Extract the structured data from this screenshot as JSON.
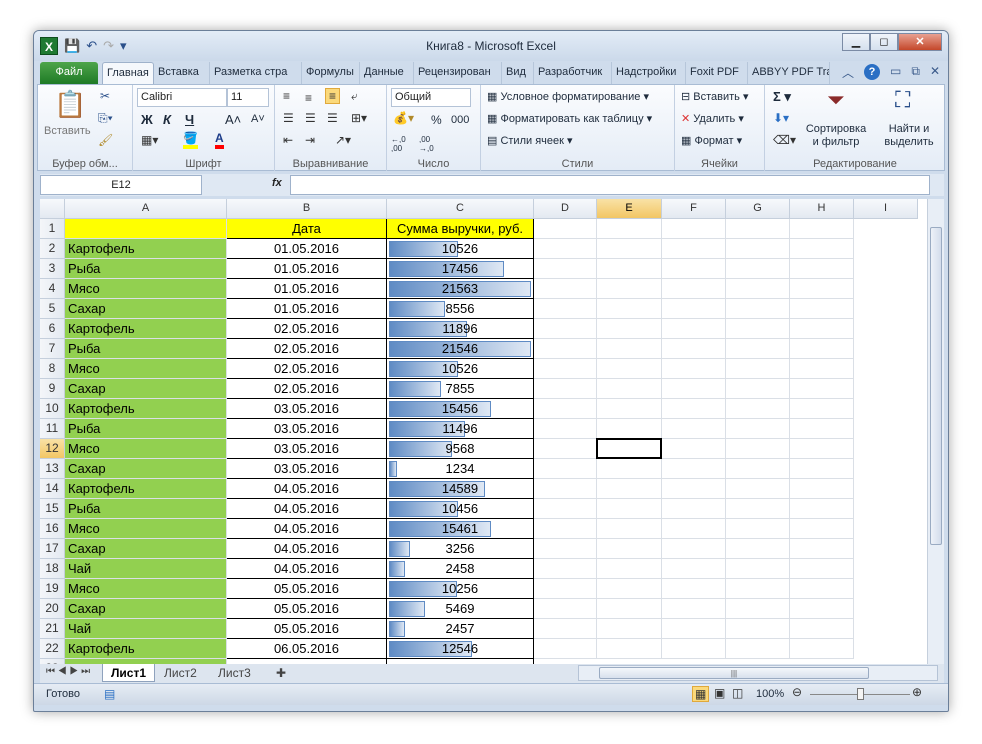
{
  "window": {
    "title": "Книга8  -  Microsoft Excel",
    "minimize": "▭",
    "restore": "◻",
    "close": "✕"
  },
  "qat": {
    "undo": "↶",
    "redo": "↷"
  },
  "tabs": [
    "Файл",
    "Главная",
    "Вставка",
    "Разметка стра",
    "Формулы",
    "Данные",
    "Рецензирован",
    "Вид",
    "Разработчик",
    "Надстройки",
    "Foxit PDF",
    "ABBYY PDF Trar"
  ],
  "active_tab": "Главная",
  "ribbon": {
    "clipboard": {
      "label": "Буфер обм...",
      "paste": "Вставить"
    },
    "font": {
      "label": "Шрифт",
      "name": "Calibri",
      "size": "11",
      "bold": "Ж",
      "italic": "К",
      "underline": "Ч",
      "grow": "A˄",
      "shrink": "A˅",
      "fill_color": "#ffff00",
      "font_color": "#ff0000"
    },
    "alignment": {
      "label": "Выравнивание"
    },
    "number": {
      "label": "Число",
      "format": "Общий",
      "percent": "%",
      "thousands": "000",
      "inc": "←,0 ,00",
      "dec": ",00 →,0"
    },
    "styles": {
      "label": "Стили",
      "conditional": "Условное форматирование",
      "format_table": "Форматировать как таблицу",
      "cell_styles": "Стили ячеек"
    },
    "cells": {
      "label": "Ячейки",
      "insert": "Вставить",
      "delete": "Удалить",
      "format": "Формат"
    },
    "editing": {
      "label": "Редактирование",
      "sum": "Σ",
      "sort": "Сортировка\nи фильтр",
      "find": "Найти и\nвыделить"
    }
  },
  "formula_bar": {
    "name_box": "E12",
    "fx": "fx",
    "value": ""
  },
  "columns": [
    "A",
    "B",
    "C",
    "D",
    "E",
    "F",
    "G",
    "H",
    "I"
  ],
  "selected_cell": "E12",
  "header_row": {
    "a": "",
    "b": "Дата",
    "c": "Сумма выручки, руб."
  },
  "rows": [
    {
      "n": 2,
      "a": "Картофель",
      "b": "01.05.2016",
      "c": 10526
    },
    {
      "n": 3,
      "a": "Рыба",
      "b": "01.05.2016",
      "c": 17456
    },
    {
      "n": 4,
      "a": "Мясо",
      "b": "01.05.2016",
      "c": 21563
    },
    {
      "n": 5,
      "a": "Сахар",
      "b": "01.05.2016",
      "c": 8556
    },
    {
      "n": 6,
      "a": "Картофель",
      "b": "02.05.2016",
      "c": 11896
    },
    {
      "n": 7,
      "a": "Рыба",
      "b": "02.05.2016",
      "c": 21546
    },
    {
      "n": 8,
      "a": "Мясо",
      "b": "02.05.2016",
      "c": 10526
    },
    {
      "n": 9,
      "a": "Сахар",
      "b": "02.05.2016",
      "c": 7855
    },
    {
      "n": 10,
      "a": "Картофель",
      "b": "03.05.2016",
      "c": 15456
    },
    {
      "n": 11,
      "a": "Рыба",
      "b": "03.05.2016",
      "c": 11496
    },
    {
      "n": 12,
      "a": "Мясо",
      "b": "03.05.2016",
      "c": 9568
    },
    {
      "n": 13,
      "a": "Сахар",
      "b": "03.05.2016",
      "c": 1234
    },
    {
      "n": 14,
      "a": "Картофель",
      "b": "04.05.2016",
      "c": 14589
    },
    {
      "n": 15,
      "a": "Рыба",
      "b": "04.05.2016",
      "c": 10456
    },
    {
      "n": 16,
      "a": "Мясо",
      "b": "04.05.2016",
      "c": 15461
    },
    {
      "n": 17,
      "a": "Сахар",
      "b": "04.05.2016",
      "c": 3256
    },
    {
      "n": 18,
      "a": "Чай",
      "b": "04.05.2016",
      "c": 2458
    },
    {
      "n": 19,
      "a": "Мясо",
      "b": "05.05.2016",
      "c": 10256
    },
    {
      "n": 20,
      "a": "Сахар",
      "b": "05.05.2016",
      "c": 5469
    },
    {
      "n": 21,
      "a": "Чай",
      "b": "05.05.2016",
      "c": 2457
    },
    {
      "n": 22,
      "a": "Картофель",
      "b": "06.05.2016",
      "c": 12546
    }
  ],
  "colors": {
    "green_fill": "#92d050",
    "yellow_fill": "#ffff00",
    "databar": "#5f8bc4"
  },
  "sheets": [
    "Лист1",
    "Лист2",
    "Лист3"
  ],
  "active_sheet": "Лист1",
  "status": {
    "ready": "Готово",
    "zoom": "100%",
    "zoom_level": 1.0
  }
}
